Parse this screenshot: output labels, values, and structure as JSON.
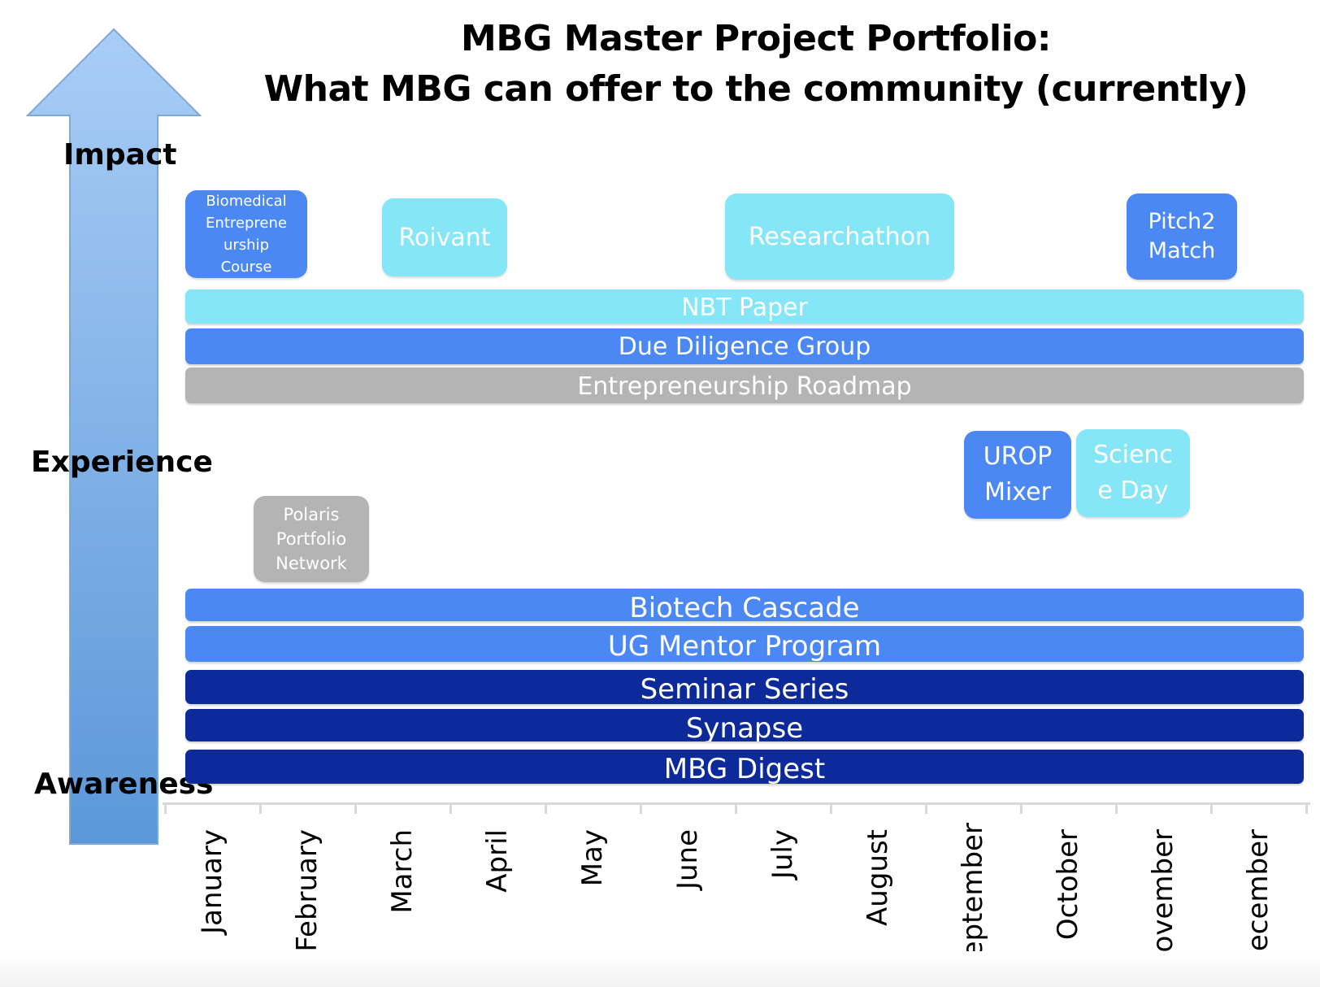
{
  "title": {
    "line1": "MBG Master Project Portfolio:",
    "line2": "What MBG can offer to the community (currently)"
  },
  "levels": {
    "impact": "Impact",
    "experience": "Experience",
    "awareness": "Awareness"
  },
  "colors": {
    "cyan": "#85e6f8",
    "blue": "#4c88f3",
    "navy": "#0c2a9a",
    "gray": "#b4b4b4",
    "arrow_top": "#a9cdf6",
    "arrow_bottom": "#5b97d8"
  },
  "bands": [
    {
      "label": "NBT Paper",
      "color": "cyan"
    },
    {
      "label": "Due Diligence Group",
      "color": "blue"
    },
    {
      "label": "Entrepreneurship Roadmap",
      "color": "gray"
    },
    {
      "label": "Biotech  Cascade",
      "color": "blue"
    },
    {
      "label": "UG Mentor Program",
      "color": "blue"
    },
    {
      "label": "Seminar Series",
      "color": "navy"
    },
    {
      "label": "Synapse",
      "color": "navy"
    },
    {
      "label": "MBG Digest",
      "color": "navy"
    }
  ],
  "boxes": [
    {
      "lines": [
        "Biomedical",
        "Entreprene",
        "urship",
        "Course"
      ],
      "color": "blue"
    },
    {
      "lines": [
        "Roivant"
      ],
      "color": "cyan"
    },
    {
      "lines": [
        "Researchathon"
      ],
      "color": "cyan"
    },
    {
      "lines": [
        "Pitch2",
        "Match"
      ],
      "color": "blue"
    },
    {
      "lines": [
        "UROP",
        "Mixer"
      ],
      "color": "blue"
    },
    {
      "lines": [
        "Scienc",
        "e Day"
      ],
      "color": "cyan"
    },
    {
      "lines": [
        "Polaris",
        "Portfolio",
        "Network"
      ],
      "color": "gray"
    }
  ],
  "months": [
    "January",
    "February",
    "March",
    "April",
    "May",
    "June",
    "July",
    "August",
    "September",
    "October",
    "November",
    "December"
  ]
}
